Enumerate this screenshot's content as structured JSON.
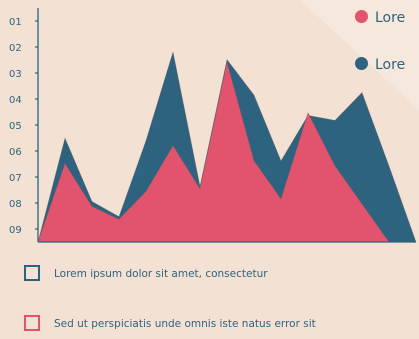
{
  "colors": {
    "background": "#f3e2d3",
    "series_blue": "#2e6380",
    "series_pink": "#e2536e",
    "text": "#2e6380",
    "axis": "#2e6380"
  },
  "chart_data": {
    "type": "area",
    "y_ticks": [
      "01",
      "02",
      "03",
      "04",
      "05",
      "06",
      "07",
      "08",
      "09"
    ],
    "x": [
      0,
      1,
      2,
      3,
      4,
      5,
      6,
      7,
      8,
      9,
      10,
      11,
      12,
      13,
      14
    ],
    "xlim": [
      0,
      14
    ],
    "ylim": [
      0,
      9
    ],
    "grid": false,
    "legend_position": "top-right",
    "series": [
      {
        "name": "Lorem",
        "color": "#e2536e",
        "values": [
          0,
          3.1,
          1.4,
          0.9,
          2.0,
          3.8,
          2.1,
          7.1,
          3.2,
          1.7,
          5.1,
          3.0,
          1.5,
          0,
          0
        ]
      },
      {
        "name": "Lorem",
        "color": "#2e6380",
        "values": [
          0,
          4.1,
          1.6,
          1.0,
          4.0,
          7.5,
          2.2,
          7.2,
          5.8,
          3.2,
          5.0,
          4.8,
          5.9,
          3.0,
          0
        ]
      }
    ]
  },
  "legend_top": [
    {
      "label": "Lore",
      "color": "#e2536e"
    },
    {
      "label": "Lore",
      "color": "#2e6380"
    }
  ],
  "legend_bottom": [
    {
      "label": "Lorem ipsum dolor sit amet, consectetur",
      "color": "#2e6380"
    },
    {
      "label": "Sed ut perspiciatis unde omnis iste natus error sit",
      "color": "#e2536e"
    }
  ]
}
